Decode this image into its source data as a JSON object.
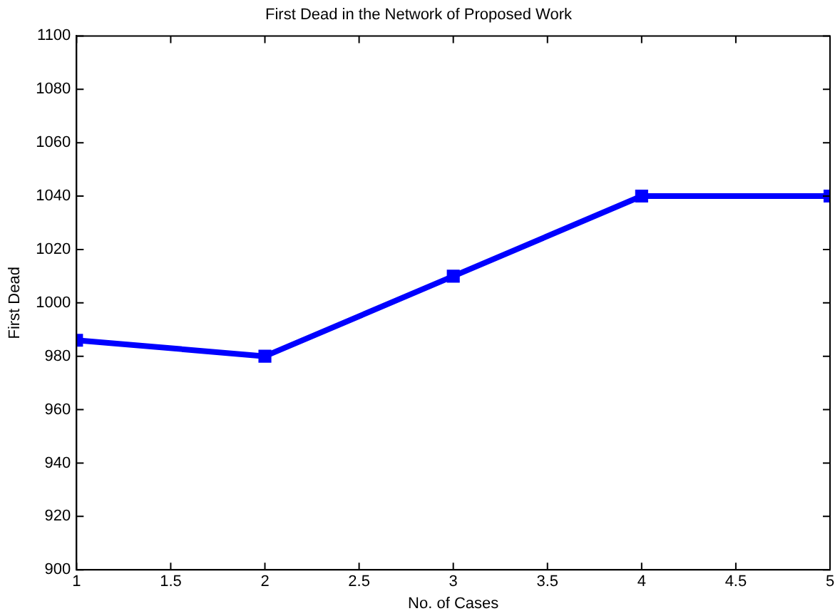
{
  "chart_data": {
    "type": "line",
    "title": "First Dead in the Network of Proposed Work",
    "xlabel": "No. of Cases",
    "ylabel": "First Dead",
    "x": [
      1,
      2,
      3,
      4,
      5
    ],
    "series": [
      {
        "color": "#0000ff",
        "values": [
          986,
          980,
          1010,
          1040,
          1040
        ]
      }
    ],
    "xlim": [
      1,
      5
    ],
    "xticks": [
      1,
      1.5,
      2,
      2.5,
      3,
      3.5,
      4,
      4.5,
      5
    ],
    "ylim": [
      900,
      1100
    ],
    "yticks": [
      900,
      920,
      940,
      960,
      980,
      1000,
      1020,
      1040,
      1060,
      1080,
      1100
    ],
    "marker": "square",
    "line_style": "solid",
    "grid": false,
    "legend": false
  }
}
